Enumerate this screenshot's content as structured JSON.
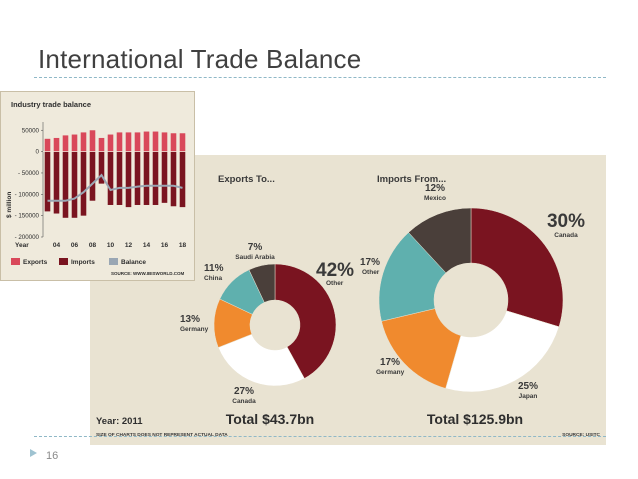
{
  "slide": {
    "title": "International Trade Balance",
    "page_number": "16"
  },
  "colors": {
    "exports": "#d9485a",
    "imports": "#7a1420",
    "balance": "#9aa7b4",
    "canada": "#7a1420",
    "japan": "#ffffff",
    "germany": "#f08a2e",
    "china_or_other": "#5fb0ae",
    "saudi_or_mexico": "#4a3f3a",
    "accent_rule": "#8fb8c7"
  },
  "chart_data": [
    {
      "type": "bar",
      "title": "Industry trade balance",
      "ylabel": "$ million",
      "xlabel": "Year",
      "ylim": [
        -200000,
        60000
      ],
      "yticks": [
        "50000",
        "0",
        "- 50000",
        "- 100000",
        "- 150000",
        "- 200000"
      ],
      "ytick_values": [
        50000,
        0,
        -50000,
        -100000,
        -150000,
        -200000
      ],
      "xtick_labels": [
        "04",
        "06",
        "08",
        "10",
        "12",
        "14",
        "16",
        "18"
      ],
      "x": [
        2003,
        2004,
        2005,
        2006,
        2007,
        2008,
        2009,
        2010,
        2011,
        2012,
        2013,
        2014,
        2015,
        2016,
        2017,
        2018
      ],
      "series": [
        {
          "name": "Exports",
          "values": [
            30000,
            32000,
            38000,
            40000,
            45000,
            50000,
            32000,
            40000,
            45000,
            45000,
            45000,
            47000,
            47000,
            45000,
            43000,
            43000
          ]
        },
        {
          "name": "Imports",
          "values": [
            -140000,
            -145000,
            -155000,
            -155000,
            -150000,
            -115000,
            -75000,
            -125000,
            -125000,
            -130000,
            -125000,
            -125000,
            -125000,
            -120000,
            -128000,
            -130000
          ]
        },
        {
          "name": "Balance",
          "values": [
            -115000,
            -115000,
            -115000,
            -110000,
            -95000,
            -75000,
            -55000,
            -90000,
            -85000,
            -85000,
            -82000,
            -80000,
            -80000,
            -80000,
            -80000,
            -85000
          ]
        }
      ],
      "legend": [
        "Exports",
        "Imports",
        "Balance"
      ],
      "source": "SOURCE: WWW.IBISWORLD.COM"
    },
    {
      "type": "pie",
      "title": "Exports To...",
      "total": "Total $43.7bn",
      "slices": [
        {
          "label": "Other",
          "pct_label": "42%",
          "value": 42,
          "color": "#7a1420"
        },
        {
          "label": "Canada",
          "pct_label": "27%",
          "value": 27,
          "color": "#ffffff"
        },
        {
          "label": "Germany",
          "pct_label": "13%",
          "value": 13,
          "color": "#f08a2e"
        },
        {
          "label": "China",
          "pct_label": "11%",
          "value": 11,
          "color": "#5fb0ae"
        },
        {
          "label": "Saudi Arabia",
          "pct_label": "7%",
          "value": 7,
          "color": "#4a3f3a"
        }
      ]
    },
    {
      "type": "pie",
      "title": "Imports From...",
      "total": "Total $125.9bn",
      "slices": [
        {
          "label": "Canada",
          "pct_label": "30%",
          "value": 30,
          "color": "#7a1420"
        },
        {
          "label": "Japan",
          "pct_label": "25%",
          "value": 25,
          "color": "#ffffff"
        },
        {
          "label": "Germany",
          "pct_label": "17%",
          "value": 17,
          "color": "#f08a2e"
        },
        {
          "label": "Other",
          "pct_label": "17%",
          "value": 17,
          "color": "#5fb0ae"
        },
        {
          "label": "Mexico",
          "pct_label": "12%",
          "value": 12,
          "color": "#4a3f3a"
        }
      ]
    }
  ],
  "donut_panel": {
    "year_label": "Year: 2011",
    "footnote": "SIZE OF CHARTS DOES NOT REPRESENT ACTUAL DATA",
    "source": "SOURCE: USITC"
  }
}
